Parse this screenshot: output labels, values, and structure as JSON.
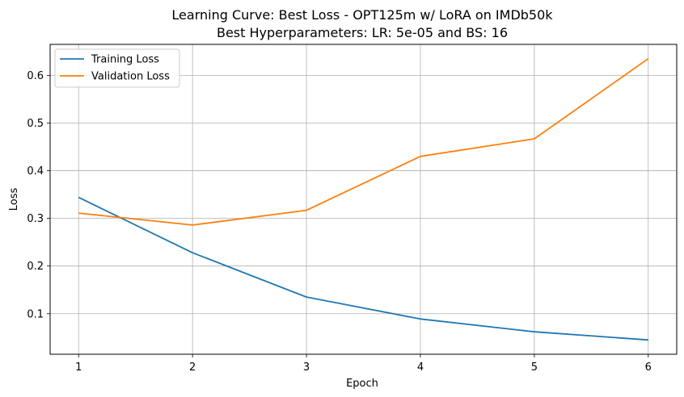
{
  "chart_data": {
    "type": "line",
    "title_line1": "Learning Curve: Best Loss - OPT125m w/ LoRA on IMDb50k",
    "title_line2": "Best Hyperparameters: LR: 5e-05 and BS: 16",
    "xlabel": "Epoch",
    "ylabel": "Loss",
    "x": [
      1,
      2,
      3,
      4,
      5,
      6
    ],
    "xticks": [
      "1",
      "2",
      "3",
      "4",
      "5",
      "6"
    ],
    "yticks": [
      "0.1",
      "0.2",
      "0.3",
      "0.4",
      "0.5",
      "0.6"
    ],
    "xlim": [
      0.75,
      6.25
    ],
    "ylim": [
      0.015,
      0.665
    ],
    "grid": true,
    "legend_position": "upper-left",
    "series": [
      {
        "name": "Training Loss",
        "color": "#1f77b4",
        "values": [
          0.344,
          0.228,
          0.135,
          0.089,
          0.062,
          0.045
        ]
      },
      {
        "name": "Validation Loss",
        "color": "#ff7f0e",
        "values": [
          0.311,
          0.286,
          0.317,
          0.43,
          0.467,
          0.635
        ]
      }
    ]
  }
}
